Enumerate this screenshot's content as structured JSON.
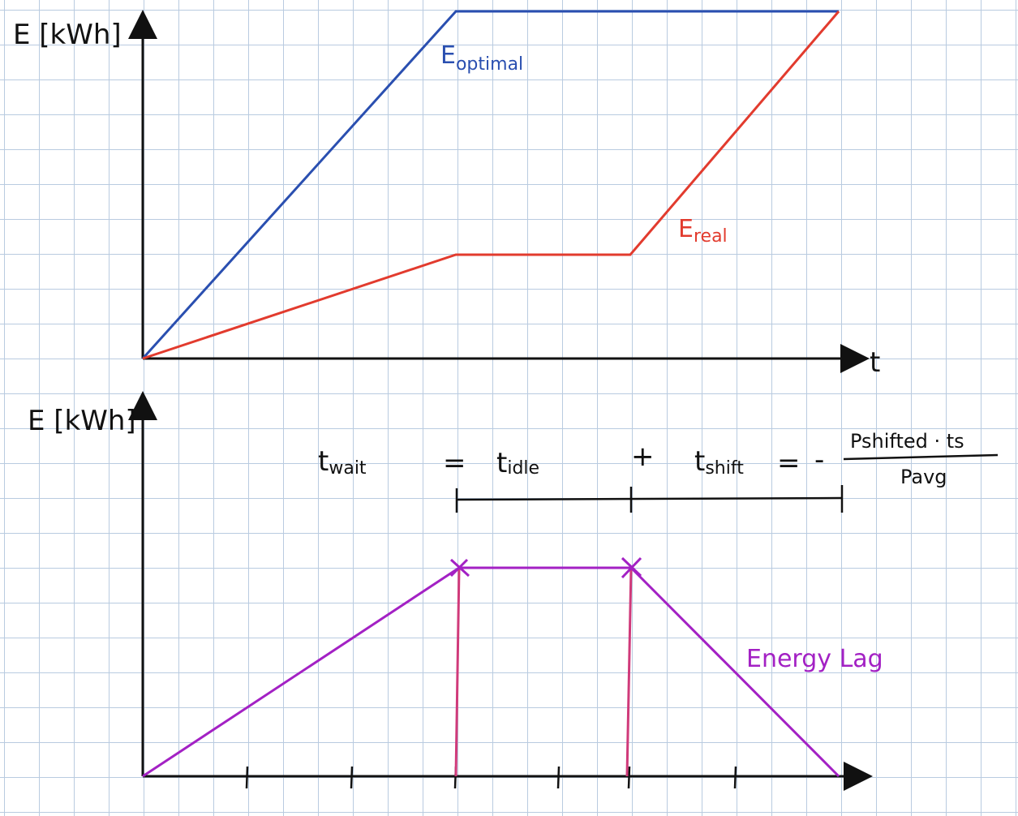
{
  "colors": {
    "optimal": "#2a4fb0",
    "real": "#e23b2e",
    "lag": "#a321c4",
    "marker": "#d03a7a",
    "axis": "#111111"
  },
  "top_plot": {
    "ylabel": "E [kWh]",
    "xlabel": "t",
    "optimal_label": {
      "main": "E",
      "sub": "optimal"
    },
    "real_label": {
      "main": "E",
      "sub": "real"
    }
  },
  "bottom_plot": {
    "ylabel": "E [kWh]",
    "lag_label": "Energy Lag"
  },
  "equation": {
    "t_wait": {
      "main": "t",
      "sub": "wait"
    },
    "equals1": "=",
    "t_idle": {
      "main": "t",
      "sub": "idle"
    },
    "plus": "+",
    "t_shift": {
      "main": "t",
      "sub": "shift"
    },
    "equals2": "=",
    "minus": "-",
    "numerator": "Pshifted · ts",
    "denominator": "Pavg"
  }
}
